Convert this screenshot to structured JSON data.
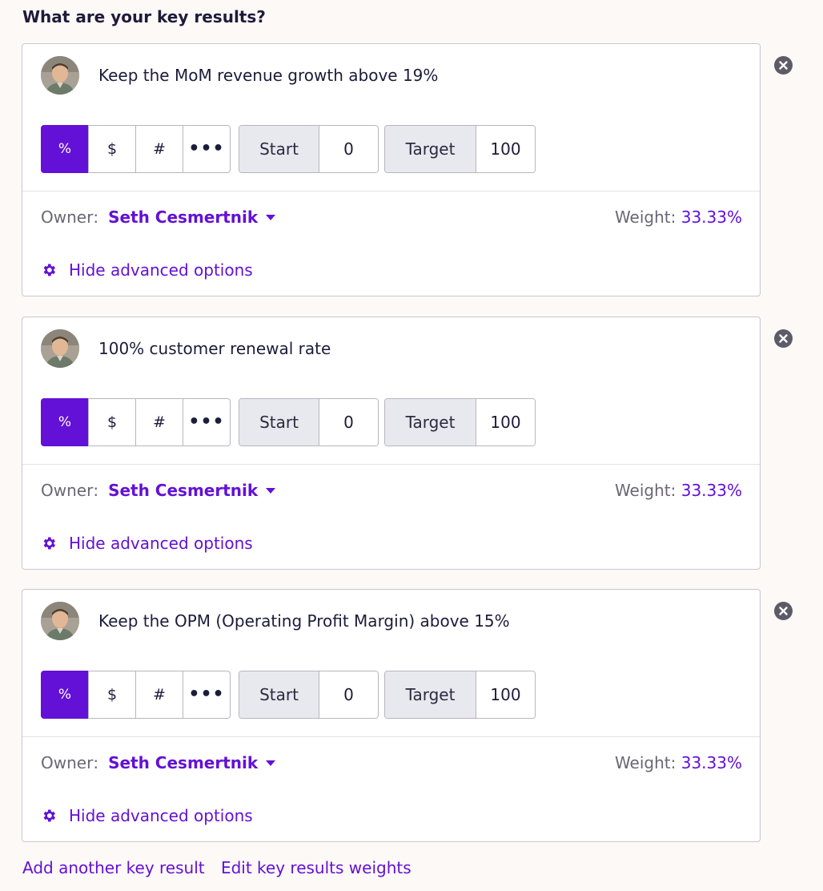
{
  "form": {
    "heading": "What are your key results?",
    "add_link": "Add another key result",
    "weights_link": "Edit key results weights"
  },
  "unit_options": [
    "%",
    "$",
    "#",
    "•••"
  ],
  "labels": {
    "start": "Start",
    "target": "Target",
    "owner": "Owner",
    "owner_colon": ":",
    "weight": "Weight:",
    "advanced": "Hide advanced options"
  },
  "key_results": [
    {
      "title": "Keep the MoM revenue growth above 19%",
      "selected_unit": "%",
      "start": "0",
      "target": "100",
      "owner": "Seth Cesmertnik",
      "weight": "33.33%"
    },
    {
      "title": "100% customer renewal rate",
      "selected_unit": "%",
      "start": "0",
      "target": "100",
      "owner": "Seth Cesmertnik",
      "weight": "33.33%"
    },
    {
      "title": "Keep the OPM (Operating Profit Margin) above 15%",
      "selected_unit": "%",
      "start": "0",
      "target": "100",
      "owner": "Seth Cesmertnik",
      "weight": "33.33%"
    }
  ],
  "colors": {
    "accent": "#6311d6",
    "text": "#1e1b3a",
    "muted": "#6a6774",
    "field_label_bg": "#e8e9ee",
    "remove_icon": "#5c5b66",
    "background": "#fdf9f7"
  },
  "icons": {
    "remove": "close-circle-icon",
    "advanced": "gear-icon",
    "owner_dropdown": "caret-down-icon",
    "avatar": "user-avatar"
  }
}
